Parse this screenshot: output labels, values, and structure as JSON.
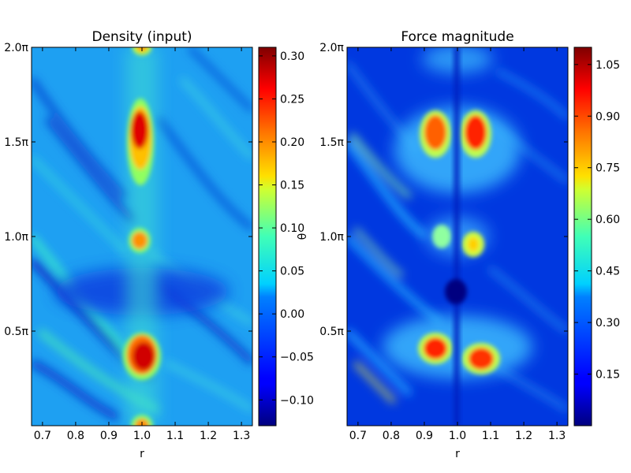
{
  "chart_data": [
    {
      "type": "heatmap",
      "title": "Density (input)",
      "xlabel": "r",
      "ylabel": "θ",
      "xlim": [
        0.667,
        1.333
      ],
      "ylim": [
        0,
        2.0
      ],
      "x_ticks": [
        {
          "value": 0.7,
          "label": "0.7"
        },
        {
          "value": 0.8,
          "label": "0.8"
        },
        {
          "value": 0.9,
          "label": "0.9"
        },
        {
          "value": 1.0,
          "label": "1.0"
        },
        {
          "value": 1.1,
          "label": "1.1"
        },
        {
          "value": 1.2,
          "label": "1.2"
        },
        {
          "value": 1.3,
          "label": "1.3"
        }
      ],
      "y_ticks": [
        {
          "value": 0.5,
          "label": "0.5π"
        },
        {
          "value": 1.0,
          "label": "1.0π"
        },
        {
          "value": 1.5,
          "label": "1.5π"
        },
        {
          "value": 2.0,
          "label": "2.0π"
        }
      ],
      "colormap": "jet",
      "colorbar": {
        "range": [
          -0.13,
          0.31
        ],
        "ticks": [
          {
            "value": -0.1,
            "label": "−0.10"
          },
          {
            "value": -0.05,
            "label": "−0.05"
          },
          {
            "value": 0.0,
            "label": "0.00"
          },
          {
            "value": 0.05,
            "label": "0.05"
          },
          {
            "value": 0.1,
            "label": "0.10"
          },
          {
            "value": 0.15,
            "label": "0.15"
          },
          {
            "value": 0.2,
            "label": "0.20"
          },
          {
            "value": 0.25,
            "label": "0.25"
          },
          {
            "value": 0.3,
            "label": "0.30"
          }
        ]
      },
      "features": [
        {
          "r": 1.0,
          "theta": 1.53,
          "value": 0.3
        },
        {
          "r": 1.0,
          "theta": 0.97,
          "value": 0.21
        },
        {
          "r": 1.0,
          "theta": 0.37,
          "value": 0.3
        },
        {
          "r": 1.0,
          "theta": 0.0,
          "value": 0.22
        },
        {
          "r": 1.0,
          "theta": 2.0,
          "value": 0.22
        },
        {
          "r": 0.85,
          "theta": 0.8,
          "value": -0.12
        }
      ]
    },
    {
      "type": "heatmap",
      "title": "Force magnitude",
      "xlabel": "r",
      "ylabel": "",
      "xlim": [
        0.667,
        1.333
      ],
      "ylim": [
        0,
        2.0
      ],
      "x_ticks": [
        {
          "value": 0.7,
          "label": "0.7"
        },
        {
          "value": 0.8,
          "label": "0.8"
        },
        {
          "value": 0.9,
          "label": "0.9"
        },
        {
          "value": 1.0,
          "label": "1.0"
        },
        {
          "value": 1.1,
          "label": "1.1"
        },
        {
          "value": 1.2,
          "label": "1.2"
        },
        {
          "value": 1.3,
          "label": "1.3"
        }
      ],
      "y_ticks": [
        {
          "value": 0.5,
          "label": "0.5π"
        },
        {
          "value": 1.0,
          "label": "1.0π"
        },
        {
          "value": 1.5,
          "label": "1.5π"
        },
        {
          "value": 2.0,
          "label": "2.0π"
        }
      ],
      "colormap": "jet",
      "colorbar": {
        "range": [
          0.0,
          1.1
        ],
        "ticks": [
          {
            "value": 0.15,
            "label": "0.15"
          },
          {
            "value": 0.3,
            "label": "0.30"
          },
          {
            "value": 0.45,
            "label": "0.45"
          },
          {
            "value": 0.6,
            "label": "0.60"
          },
          {
            "value": 0.75,
            "label": "0.75"
          },
          {
            "value": 0.9,
            "label": "0.90"
          },
          {
            "value": 1.05,
            "label": "1.05"
          }
        ]
      },
      "features": [
        {
          "r": 0.945,
          "theta": 1.53,
          "value": 1.0
        },
        {
          "r": 1.055,
          "theta": 1.53,
          "value": 1.05
        },
        {
          "r": 0.95,
          "theta": 0.37,
          "value": 1.05
        },
        {
          "r": 1.06,
          "theta": 0.35,
          "value": 1.0
        },
        {
          "r": 0.975,
          "theta": 1.0,
          "value": 0.55
        },
        {
          "r": 1.04,
          "theta": 0.98,
          "value": 0.7
        }
      ]
    }
  ]
}
